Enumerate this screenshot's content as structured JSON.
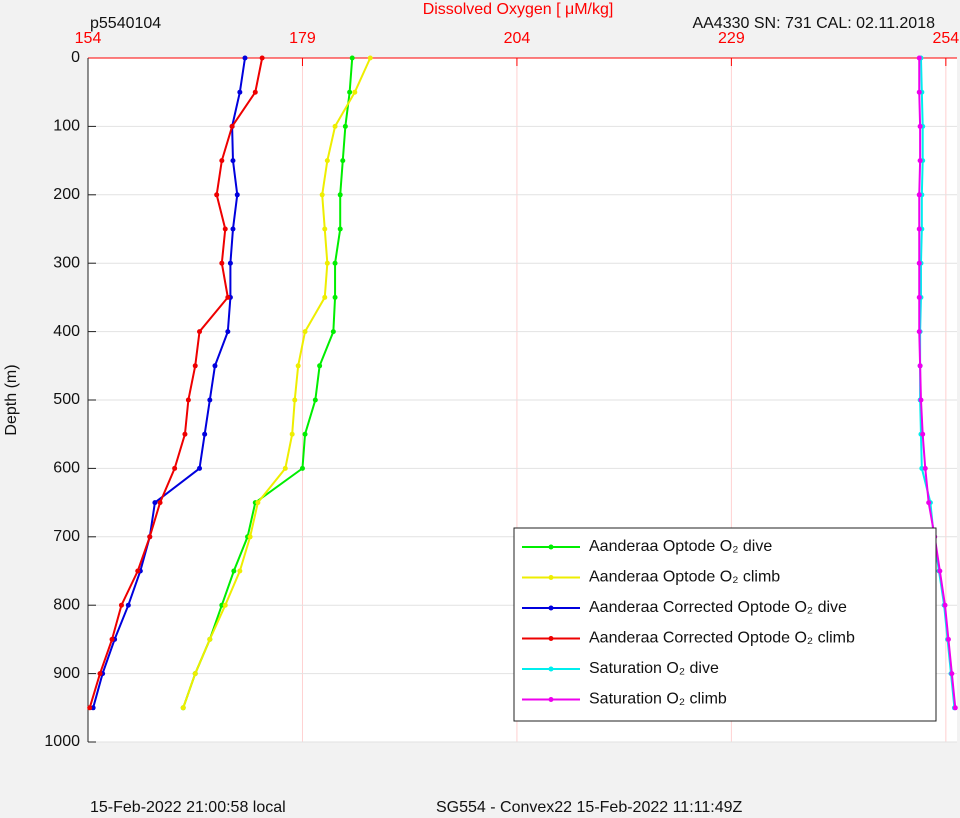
{
  "chart_data": {
    "type": "line",
    "title": "Dissolved Oxygen [ μM/kg]",
    "header_left": "p5540104",
    "header_right": "AA4330   SN: 731   CAL: 02.11.2018",
    "footer_left": "15-Feb-2022 21:00:58 local",
    "footer_right": "SG554 - Convex22 15-Feb-2022 11:11:49Z",
    "ylabel": "Depth (m)",
    "xlim": [
      154,
      255.3
    ],
    "xticks": [
      154,
      179,
      204,
      229,
      254
    ],
    "ylim": [
      0,
      1000
    ],
    "yticks": [
      0,
      100,
      200,
      300,
      400,
      500,
      600,
      700,
      800,
      900,
      1000
    ],
    "y_reversed": true,
    "grid": true,
    "legend": "lower right",
    "y": [
      0,
      50,
      100,
      150,
      200,
      250,
      300,
      350,
      400,
      450,
      500,
      550,
      600,
      650,
      700,
      750,
      800,
      850,
      900,
      950
    ],
    "series": [
      {
        "name": "Aanderaa Optode O₂ dive",
        "color": "#00ee00",
        "values": [
          184.8,
          184.5,
          184.0,
          183.7,
          183.4,
          183.4,
          182.8,
          182.8,
          182.6,
          181.0,
          180.5,
          179.3,
          179.0,
          173.5,
          172.6,
          171.0,
          169.6,
          168.2,
          166.5,
          165.1
        ]
      },
      {
        "name": "Aanderaa Optode O₂ climb",
        "color": "#eeee00",
        "values": [
          186.9,
          185.1,
          182.8,
          181.9,
          181.3,
          181.6,
          181.9,
          181.6,
          179.3,
          178.5,
          178.1,
          177.8,
          177.0,
          173.8,
          172.9,
          171.7,
          170.0,
          168.2,
          166.5,
          165.1
        ]
      },
      {
        "name": "Aanderaa Corrected Optode O₂ dive",
        "color": "#0000dd",
        "values": [
          172.3,
          171.7,
          170.8,
          170.9,
          171.4,
          170.9,
          170.6,
          170.6,
          170.3,
          168.8,
          168.2,
          167.6,
          167.0,
          161.8,
          161.2,
          160.1,
          158.7,
          157.1,
          155.7,
          154.6
        ]
      },
      {
        "name": "Aanderaa Corrected Optode O₂ climb",
        "color": "#ee0000",
        "values": [
          174.3,
          173.5,
          170.8,
          169.6,
          169.0,
          170.0,
          169.6,
          170.3,
          167.0,
          166.5,
          165.7,
          165.3,
          164.1,
          162.4,
          161.2,
          159.8,
          157.9,
          156.8,
          155.4,
          154.2
        ]
      },
      {
        "name": "Saturation O₂ dive",
        "color": "#00eeee",
        "values": [
          251.1,
          251.2,
          251.3,
          251.3,
          251.2,
          251.2,
          251.1,
          251.1,
          251.0,
          251.0,
          251.0,
          251.1,
          251.2,
          252.2,
          252.6,
          253.2,
          253.8,
          254.2,
          254.6,
          255.0
        ]
      },
      {
        "name": "Saturation O₂ climb",
        "color": "#ee00ee",
        "values": [
          250.9,
          250.9,
          251.0,
          251.0,
          250.9,
          250.9,
          250.9,
          250.9,
          250.9,
          251.0,
          251.1,
          251.3,
          251.6,
          252.0,
          252.7,
          253.3,
          253.9,
          254.3,
          254.7,
          255.1
        ]
      }
    ]
  }
}
